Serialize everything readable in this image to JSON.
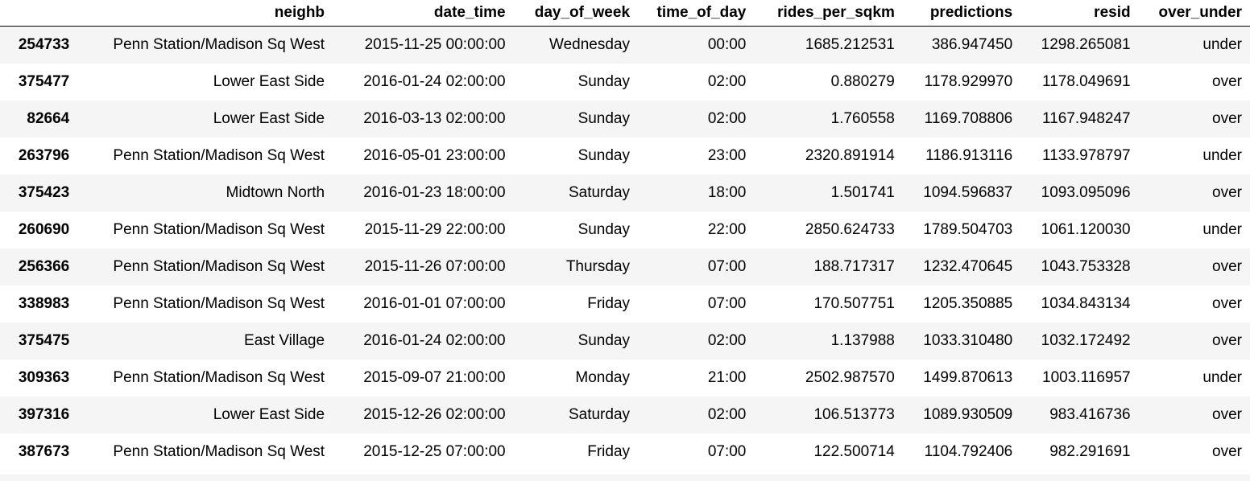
{
  "table": {
    "columns": [
      "",
      "neighb",
      "date_time",
      "day_of_week",
      "time_of_day",
      "rides_per_sqkm",
      "predictions",
      "resid",
      "over_under"
    ],
    "rows": [
      {
        "index": "254733",
        "neighb": "Penn Station/Madison Sq West",
        "date_time": "2015-11-25 00:00:00",
        "day_of_week": "Wednesday",
        "time_of_day": "00:00",
        "rides_per_sqkm": "1685.212531",
        "predictions": "386.947450",
        "resid": "1298.265081",
        "over_under": "under"
      },
      {
        "index": "375477",
        "neighb": "Lower East Side",
        "date_time": "2016-01-24 02:00:00",
        "day_of_week": "Sunday",
        "time_of_day": "02:00",
        "rides_per_sqkm": "0.880279",
        "predictions": "1178.929970",
        "resid": "1178.049691",
        "over_under": "over"
      },
      {
        "index": "82664",
        "neighb": "Lower East Side",
        "date_time": "2016-03-13 02:00:00",
        "day_of_week": "Sunday",
        "time_of_day": "02:00",
        "rides_per_sqkm": "1.760558",
        "predictions": "1169.708806",
        "resid": "1167.948247",
        "over_under": "over"
      },
      {
        "index": "263796",
        "neighb": "Penn Station/Madison Sq West",
        "date_time": "2016-05-01 23:00:00",
        "day_of_week": "Sunday",
        "time_of_day": "23:00",
        "rides_per_sqkm": "2320.891914",
        "predictions": "1186.913116",
        "resid": "1133.978797",
        "over_under": "under"
      },
      {
        "index": "375423",
        "neighb": "Midtown North",
        "date_time": "2016-01-23 18:00:00",
        "day_of_week": "Saturday",
        "time_of_day": "18:00",
        "rides_per_sqkm": "1.501741",
        "predictions": "1094.596837",
        "resid": "1093.095096",
        "over_under": "over"
      },
      {
        "index": "260690",
        "neighb": "Penn Station/Madison Sq West",
        "date_time": "2015-11-29 22:00:00",
        "day_of_week": "Sunday",
        "time_of_day": "22:00",
        "rides_per_sqkm": "2850.624733",
        "predictions": "1789.504703",
        "resid": "1061.120030",
        "over_under": "under"
      },
      {
        "index": "256366",
        "neighb": "Penn Station/Madison Sq West",
        "date_time": "2015-11-26 07:00:00",
        "day_of_week": "Thursday",
        "time_of_day": "07:00",
        "rides_per_sqkm": "188.717317",
        "predictions": "1232.470645",
        "resid": "1043.753328",
        "over_under": "over"
      },
      {
        "index": "338983",
        "neighb": "Penn Station/Madison Sq West",
        "date_time": "2016-01-01 07:00:00",
        "day_of_week": "Friday",
        "time_of_day": "07:00",
        "rides_per_sqkm": "170.507751",
        "predictions": "1205.350885",
        "resid": "1034.843134",
        "over_under": "over"
      },
      {
        "index": "375475",
        "neighb": "East Village",
        "date_time": "2016-01-24 02:00:00",
        "day_of_week": "Sunday",
        "time_of_day": "02:00",
        "rides_per_sqkm": "1.137988",
        "predictions": "1033.310480",
        "resid": "1032.172492",
        "over_under": "over"
      },
      {
        "index": "309363",
        "neighb": "Penn Station/Madison Sq West",
        "date_time": "2015-09-07 21:00:00",
        "day_of_week": "Monday",
        "time_of_day": "21:00",
        "rides_per_sqkm": "2502.987570",
        "predictions": "1499.870613",
        "resid": "1003.116957",
        "over_under": "under"
      },
      {
        "index": "397316",
        "neighb": "Lower East Side",
        "date_time": "2015-12-26 02:00:00",
        "day_of_week": "Saturday",
        "time_of_day": "02:00",
        "rides_per_sqkm": "106.513773",
        "predictions": "1089.930509",
        "resid": "983.416736",
        "over_under": "over"
      },
      {
        "index": "387673",
        "neighb": "Penn Station/Madison Sq West",
        "date_time": "2015-12-25 07:00:00",
        "day_of_week": "Friday",
        "time_of_day": "07:00",
        "rides_per_sqkm": "122.500714",
        "predictions": "1104.792406",
        "resid": "982.291691",
        "over_under": "over"
      }
    ]
  },
  "colors": {
    "row_stripe": "#f5f5f5",
    "background": "#ffffff",
    "text": "#000000"
  }
}
